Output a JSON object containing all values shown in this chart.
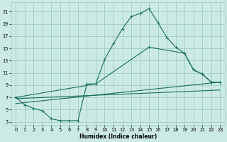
{
  "xlabel": "Humidex (Indice chaleur)",
  "bg_color": "#cceae4",
  "grid_color": "#9ecec6",
  "line_color": "#1a6e5e",
  "xlim": [
    -0.5,
    23.5
  ],
  "ylim": [
    2.5,
    22.5
  ],
  "xticks": [
    0,
    1,
    2,
    3,
    4,
    5,
    6,
    7,
    8,
    9,
    10,
    11,
    12,
    13,
    14,
    15,
    16,
    17,
    18,
    19,
    20,
    21,
    22,
    23
  ],
  "yticks": [
    3,
    5,
    7,
    9,
    11,
    13,
    15,
    17,
    19,
    21
  ],
  "line1_x": [
    0,
    1,
    2,
    3,
    4,
    5,
    6,
    7,
    8,
    9,
    10,
    11,
    12,
    13,
    14,
    15,
    16,
    17,
    18,
    19,
    20,
    21,
    22,
    23
  ],
  "line1_y": [
    7.0,
    5.8,
    5.2,
    4.8,
    3.5,
    3.2,
    3.2,
    3.2,
    9.2,
    9.2,
    13.2,
    15.8,
    18.2,
    20.2,
    20.7,
    21.5,
    19.2,
    16.8,
    15.2,
    14.2,
    11.5,
    10.8,
    9.5,
    9.5
  ],
  "line2_x": [
    0,
    9,
    15,
    19,
    20,
    21,
    22,
    23
  ],
  "line2_y": [
    7.0,
    9.2,
    15.2,
    14.2,
    11.5,
    10.8,
    9.5,
    9.5
  ],
  "line3_x": [
    0,
    23
  ],
  "line3_y": [
    6.0,
    9.5
  ],
  "line4_x": [
    0,
    23
  ],
  "line4_y": [
    6.8,
    8.2
  ]
}
